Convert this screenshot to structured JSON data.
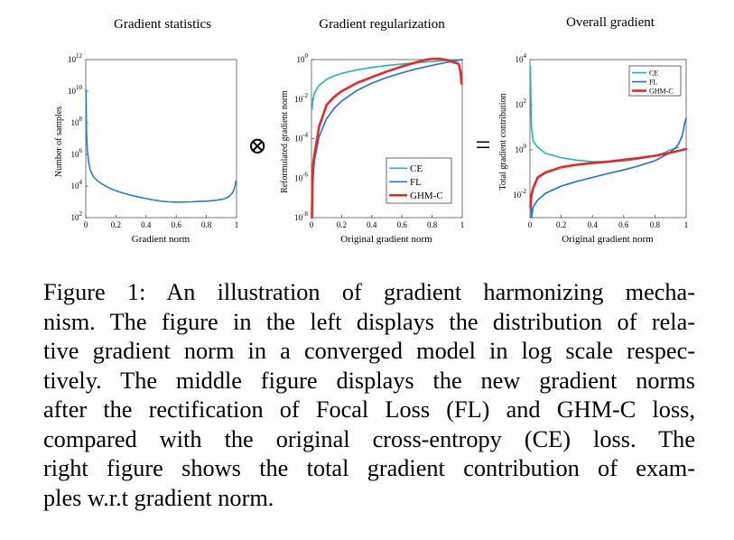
{
  "operators": {
    "multiply": "⊗",
    "equals": "="
  },
  "chart_data": [
    {
      "type": "line",
      "title": "Gradient statistics",
      "xlabel": "Gradient norm",
      "ylabel": "Number of samples",
      "xlim": [
        0,
        1
      ],
      "ylim_log10": [
        2,
        12
      ],
      "yscale": "log",
      "grid": false,
      "xticks": [
        "0",
        "0.2",
        "0.4",
        "0.6",
        "0.8",
        "1"
      ],
      "yticks": [
        {
          "base": "10",
          "exp": "2"
        },
        {
          "base": "10",
          "exp": "4"
        },
        {
          "base": "10",
          "exp": "6"
        },
        {
          "base": "10",
          "exp": "8"
        },
        {
          "base": "10",
          "exp": "10"
        },
        {
          "base": "10",
          "exp": "12"
        }
      ],
      "series": [
        {
          "color": "#2a7fc0",
          "x": [
            0.002,
            0.005,
            0.01,
            0.02,
            0.03,
            0.05,
            0.07,
            0.1,
            0.15,
            0.2,
            0.25,
            0.3,
            0.35,
            0.4,
            0.45,
            0.5,
            0.55,
            0.6,
            0.65,
            0.7,
            0.75,
            0.8,
            0.85,
            0.9,
            0.93,
            0.95,
            0.97,
            0.98,
            0.99,
            0.995
          ],
          "y": [
            12000000000.0,
            30000000.0,
            2000000.0,
            300000.0,
            100000.0,
            40000.0,
            25000.0,
            15000.0,
            8000.0,
            5000.0,
            3500.0,
            2600.0,
            2000.0,
            1600.0,
            1300.0,
            1100.0,
            1000.0,
            950.0,
            980.0,
            1000.0,
            1050.0,
            1100.0,
            1200.0,
            1400.0,
            1700.0,
            2200.0,
            3500.0,
            5000.0,
            10000.0,
            20000.0
          ]
        }
      ]
    },
    {
      "type": "line",
      "title": "Gradient regularization",
      "xlabel": "Original gradient norm",
      "ylabel": "Reformulated gradient norm",
      "xlim": [
        0,
        1
      ],
      "ylim_log10": [
        -8,
        0
      ],
      "yscale": "log",
      "grid": false,
      "xticks": [
        "0",
        "0.2",
        "0.4",
        "0.6",
        "0.8",
        "1"
      ],
      "yticks": [
        {
          "base": "10",
          "exp": "-8"
        },
        {
          "base": "10",
          "exp": "-6"
        },
        {
          "base": "10",
          "exp": "-4"
        },
        {
          "base": "10",
          "exp": "-2"
        },
        {
          "base": "10",
          "exp": "0"
        }
      ],
      "legend": "lower-right",
      "series": [
        {
          "name": "CE",
          "color": "#21b5b0",
          "x": [
            0.003,
            0.01,
            0.02,
            0.05,
            0.1,
            0.15,
            0.2,
            0.3,
            0.4,
            0.5,
            0.6,
            0.7,
            0.8,
            0.9,
            1.0
          ],
          "y": [
            0.003,
            0.01,
            0.02,
            0.05,
            0.1,
            0.15,
            0.2,
            0.3,
            0.4,
            0.5,
            0.6,
            0.7,
            0.8,
            0.9,
            1.0
          ]
        },
        {
          "name": "FL",
          "color": "#1f6fd1",
          "x": [
            0.003,
            0.01,
            0.02,
            0.05,
            0.1,
            0.15,
            0.2,
            0.3,
            0.4,
            0.5,
            0.6,
            0.7,
            0.8,
            0.9,
            1.0
          ],
          "y": [
            2.7e-08,
            1e-06,
            8e-06,
            0.000125,
            0.001,
            0.0034,
            0.008,
            0.027,
            0.064,
            0.125,
            0.216,
            0.343,
            0.512,
            0.729,
            1.0
          ]
        },
        {
          "name": "GHM-C",
          "color": "#e8262a",
          "x": [
            0.003,
            0.006,
            0.01,
            0.02,
            0.05,
            0.1,
            0.15,
            0.2,
            0.3,
            0.4,
            0.5,
            0.6,
            0.7,
            0.75,
            0.8,
            0.85,
            0.9,
            0.95,
            0.97,
            0.98,
            0.99,
            0.995
          ],
          "y": [
            1e-08,
            4e-07,
            5e-06,
            1.5e-05,
            0.0004,
            0.005,
            0.013,
            0.025,
            0.065,
            0.13,
            0.25,
            0.45,
            0.75,
            0.95,
            1.1,
            1.1,
            0.95,
            0.7,
            0.65,
            0.5,
            0.2,
            0.06
          ]
        }
      ]
    },
    {
      "type": "line",
      "title": "Overall gradient",
      "xlabel": "Original gradient norm",
      "ylabel": "Total gradient contribution",
      "xlim": [
        0,
        1
      ],
      "ylim_log10": [
        -3,
        4
      ],
      "yscale": "log",
      "grid": false,
      "xticks": [
        "0",
        "0.2",
        "0.4",
        "0.6",
        "0.8",
        "1"
      ],
      "yticks": [
        {
          "base": "10",
          "exp": "-2"
        },
        {
          "base": "10",
          "exp": "0"
        },
        {
          "base": "10",
          "exp": "2"
        },
        {
          "base": "10",
          "exp": "4"
        }
      ],
      "legend": "top-right",
      "series": [
        {
          "name": "CE",
          "color": "#21b5b0",
          "x": [
            0.003,
            0.005,
            0.01,
            0.02,
            0.05,
            0.1,
            0.2,
            0.3,
            0.4,
            0.5,
            0.6,
            0.7,
            0.8,
            0.85,
            0.9,
            0.95
          ],
          "y": [
            5000,
            300,
            10,
            2.5,
            1.3,
            0.7,
            0.45,
            0.35,
            0.3,
            0.3,
            0.33,
            0.4,
            0.55,
            0.7,
            1.0,
            1.3
          ]
        },
        {
          "name": "FL",
          "color": "#1f6fd1",
          "x": [
            0.005,
            0.01,
            0.02,
            0.05,
            0.1,
            0.2,
            0.3,
            0.4,
            0.5,
            0.6,
            0.7,
            0.8,
            0.85,
            0.9,
            0.93,
            0.95,
            0.97,
            0.98,
            0.99,
            1.0
          ],
          "y": [
            0.008,
            0.001,
            0.003,
            0.006,
            0.012,
            0.025,
            0.04,
            0.06,
            0.09,
            0.13,
            0.2,
            0.33,
            0.5,
            0.8,
            1.2,
            1.8,
            3.5,
            6,
            15,
            25
          ]
        },
        {
          "name": "GHM-C",
          "color": "#e8262a",
          "x": [
            0.003,
            0.005,
            0.01,
            0.02,
            0.05,
            0.1,
            0.2,
            0.3,
            0.4,
            0.5,
            0.6,
            0.7,
            0.8,
            0.9,
            0.95,
            1.0
          ],
          "y": [
            0.003,
            0.005,
            0.01,
            0.02,
            0.06,
            0.1,
            0.17,
            0.22,
            0.26,
            0.3,
            0.36,
            0.44,
            0.55,
            0.75,
            0.9,
            1.1
          ]
        }
      ]
    }
  ],
  "caption": {
    "lines": [
      "Figure 1: An illustration of gradient harmonizing mecha-",
      "nism. The figure in the left displays the distribution of rela-",
      "tive gradient norm in a converged model in log scale respec-",
      "tively. The middle figure displays the new gradient norms",
      "after the rectification of Focal Loss (FL) and GHM-C loss,",
      "compared with the original cross-entropy (CE) loss. The",
      "right figure shows the total gradient contribution of exam-",
      "ples w.r.t gradient norm."
    ]
  }
}
